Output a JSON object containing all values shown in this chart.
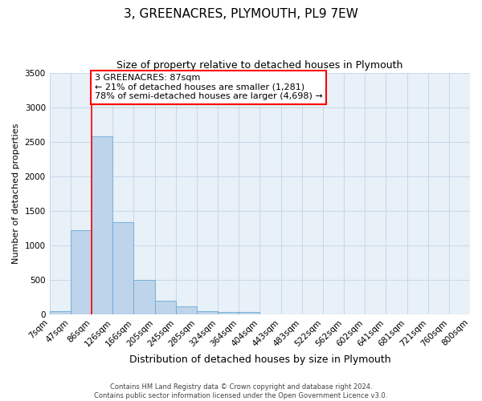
{
  "title": "3, GREENACRES, PLYMOUTH, PL9 7EW",
  "subtitle": "Size of property relative to detached houses in Plymouth",
  "xlabel": "Distribution of detached houses by size in Plymouth",
  "ylabel": "Number of detached properties",
  "bar_heights": [
    50,
    1220,
    2580,
    1340,
    500,
    200,
    110,
    50,
    30,
    30,
    0,
    0,
    0,
    0,
    0,
    0,
    0,
    0,
    0,
    0
  ],
  "bar_labels": [
    "7sqm",
    "47sqm",
    "86sqm",
    "126sqm",
    "166sqm",
    "205sqm",
    "245sqm",
    "285sqm",
    "324sqm",
    "364sqm",
    "404sqm",
    "443sqm",
    "483sqm",
    "522sqm",
    "562sqm",
    "602sqm",
    "641sqm",
    "681sqm",
    "721sqm",
    "760sqm",
    "800sqm"
  ],
  "bar_color": "#bed4ea",
  "bar_edge_color": "#6aaad4",
  "red_line_x": 2,
  "ylim": [
    0,
    3500
  ],
  "yticks": [
    0,
    500,
    1000,
    1500,
    2000,
    2500,
    3000,
    3500
  ],
  "annotation_text": "3 GREENACRES: 87sqm\n← 21% of detached houses are smaller (1,281)\n78% of semi-detached houses are larger (4,698) →",
  "footer_line1": "Contains HM Land Registry data © Crown copyright and database right 2024.",
  "footer_line2": "Contains public sector information licensed under the Open Government Licence v3.0.",
  "bg_color": "#ffffff",
  "plot_bg_color": "#e8f0f8",
  "grid_color": "#c8d8e8",
  "title_fontsize": 11,
  "subtitle_fontsize": 9,
  "tick_fontsize": 7.5,
  "ylabel_fontsize": 8,
  "xlabel_fontsize": 9,
  "footer_fontsize": 6,
  "annot_fontsize": 8
}
